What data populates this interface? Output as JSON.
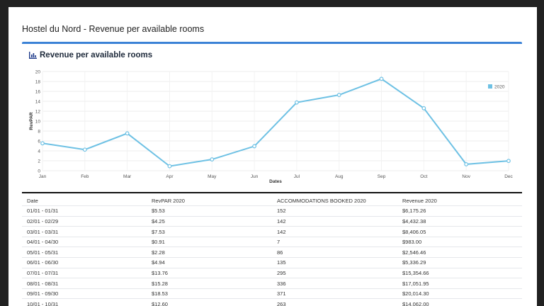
{
  "page": {
    "title": "Hostel du Nord - Revenue per available rooms"
  },
  "card": {
    "title": "Revenue per available rooms",
    "icon": "bar-chart-icon",
    "accent": "#3b82d6"
  },
  "chart_data": {
    "type": "line",
    "x": [
      "Jan",
      "Feb",
      "Mar",
      "Apr",
      "May",
      "Jun",
      "Jul",
      "Aug",
      "Sep",
      "Oct",
      "Nov",
      "Dec"
    ],
    "series": [
      {
        "name": "2020",
        "color": "#6ec1e4",
        "values": [
          5.53,
          4.25,
          7.53,
          0.91,
          2.28,
          4.94,
          13.76,
          15.28,
          18.53,
          12.6,
          1.3,
          1.98
        ]
      }
    ],
    "xlabel": "Dates",
    "ylabel": "RevPAR",
    "ylim": [
      0,
      20
    ],
    "yticks": [
      0,
      2,
      4,
      6,
      8,
      10,
      12,
      14,
      16,
      18,
      20
    ],
    "grid": true,
    "legend": "top-right"
  },
  "table": {
    "headers": [
      "Date",
      "RevPAR 2020",
      "ACCOMMODATIONS BOOKED 2020",
      "Revenue 2020"
    ],
    "rows": [
      [
        "01/01 - 01/31",
        "$5.53",
        "152",
        "$6,175.26"
      ],
      [
        "02/01 - 02/29",
        "$4.25",
        "142",
        "$4,432.38"
      ],
      [
        "03/01 - 03/31",
        "$7.53",
        "142",
        "$8,406.05"
      ],
      [
        "04/01 - 04/30",
        "$0.91",
        "7",
        "$983.00"
      ],
      [
        "05/01 - 05/31",
        "$2.28",
        "86",
        "$2,546.46"
      ],
      [
        "06/01 - 06/30",
        "$4.94",
        "135",
        "$5,336.29"
      ],
      [
        "07/01 - 07/31",
        "$13.76",
        "295",
        "$15,354.66"
      ],
      [
        "08/01 - 08/31",
        "$15.28",
        "336",
        "$17,051.95"
      ],
      [
        "09/01 - 09/30",
        "$18.53",
        "371",
        "$20,014.30"
      ],
      [
        "10/01 - 10/31",
        "$12.60",
        "263",
        "$14,062.00"
      ]
    ]
  }
}
